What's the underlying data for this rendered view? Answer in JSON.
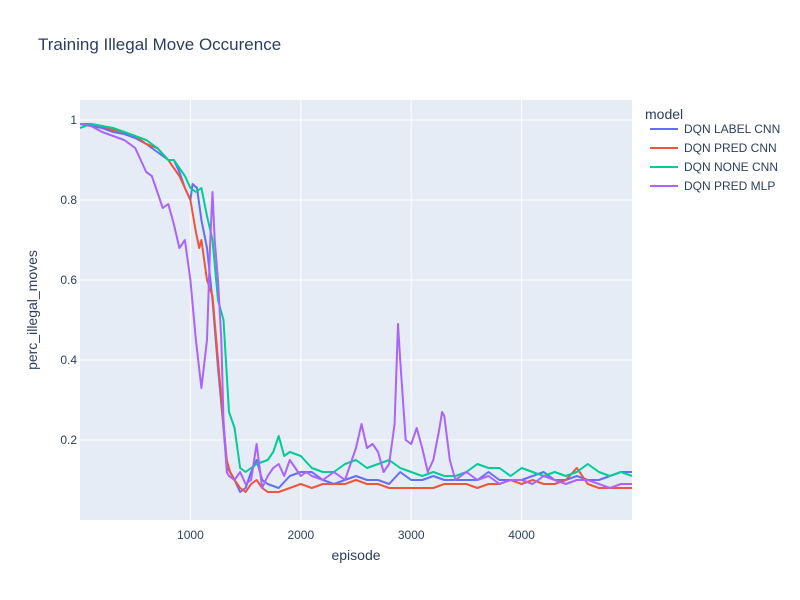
{
  "chart_data": {
    "type": "line",
    "title": "Training Illegal Move Occurence",
    "xlabel": "episode",
    "ylabel": "perc_illegal_moves",
    "xlim": [
      0,
      5000
    ],
    "ylim": [
      0,
      1.05
    ],
    "xticks": [
      1000,
      2000,
      3000,
      4000
    ],
    "yticks": [
      0.2,
      0.4,
      0.6,
      0.8,
      1
    ],
    "grid": true,
    "legend_title": "model",
    "legend_position": "right",
    "plot_bg": "#e5ecf6",
    "series": [
      {
        "name": "DQN LABEL CNN",
        "color": "#636efa",
        "points": [
          [
            0,
            0.99
          ],
          [
            100,
            0.985
          ],
          [
            200,
            0.98
          ],
          [
            300,
            0.97
          ],
          [
            400,
            0.965
          ],
          [
            500,
            0.955
          ],
          [
            600,
            0.94
          ],
          [
            700,
            0.92
          ],
          [
            800,
            0.9
          ],
          [
            850,
            0.9
          ],
          [
            900,
            0.87
          ],
          [
            950,
            0.83
          ],
          [
            1000,
            0.8
          ],
          [
            1020,
            0.84
          ],
          [
            1060,
            0.83
          ],
          [
            1100,
            0.75
          ],
          [
            1150,
            0.68
          ],
          [
            1200,
            0.55
          ],
          [
            1250,
            0.38
          ],
          [
            1300,
            0.23
          ],
          [
            1330,
            0.13
          ],
          [
            1360,
            0.12
          ],
          [
            1400,
            0.1
          ],
          [
            1450,
            0.07
          ],
          [
            1500,
            0.08
          ],
          [
            1550,
            0.12
          ],
          [
            1600,
            0.15
          ],
          [
            1650,
            0.1
          ],
          [
            1700,
            0.09
          ],
          [
            1800,
            0.08
          ],
          [
            1900,
            0.11
          ],
          [
            2000,
            0.12
          ],
          [
            2100,
            0.12
          ],
          [
            2200,
            0.1
          ],
          [
            2300,
            0.09
          ],
          [
            2400,
            0.1
          ],
          [
            2500,
            0.11
          ],
          [
            2600,
            0.1
          ],
          [
            2700,
            0.1
          ],
          [
            2800,
            0.09
          ],
          [
            2900,
            0.12
          ],
          [
            3000,
            0.1
          ],
          [
            3100,
            0.1
          ],
          [
            3200,
            0.11
          ],
          [
            3300,
            0.1
          ],
          [
            3400,
            0.1
          ],
          [
            3500,
            0.1
          ],
          [
            3600,
            0.1
          ],
          [
            3700,
            0.12
          ],
          [
            3800,
            0.1
          ],
          [
            3900,
            0.1
          ],
          [
            4000,
            0.1
          ],
          [
            4100,
            0.11
          ],
          [
            4200,
            0.12
          ],
          [
            4300,
            0.1
          ],
          [
            4400,
            0.1
          ],
          [
            4500,
            0.11
          ],
          [
            4600,
            0.1
          ],
          [
            4700,
            0.1
          ],
          [
            4800,
            0.11
          ],
          [
            4900,
            0.12
          ],
          [
            5000,
            0.12
          ]
        ]
      },
      {
        "name": "DQN PRED CNN",
        "color": "#ef553b",
        "points": [
          [
            0,
            0.99
          ],
          [
            100,
            0.99
          ],
          [
            200,
            0.985
          ],
          [
            300,
            0.975
          ],
          [
            400,
            0.97
          ],
          [
            500,
            0.96
          ],
          [
            600,
            0.94
          ],
          [
            700,
            0.93
          ],
          [
            800,
            0.9
          ],
          [
            850,
            0.88
          ],
          [
            900,
            0.86
          ],
          [
            950,
            0.83
          ],
          [
            1000,
            0.8
          ],
          [
            1050,
            0.72
          ],
          [
            1080,
            0.68
          ],
          [
            1100,
            0.7
          ],
          [
            1150,
            0.6
          ],
          [
            1200,
            0.56
          ],
          [
            1250,
            0.4
          ],
          [
            1300,
            0.24
          ],
          [
            1330,
            0.15
          ],
          [
            1360,
            0.12
          ],
          [
            1400,
            0.1
          ],
          [
            1450,
            0.08
          ],
          [
            1500,
            0.07
          ],
          [
            1550,
            0.09
          ],
          [
            1600,
            0.1
          ],
          [
            1650,
            0.08
          ],
          [
            1700,
            0.07
          ],
          [
            1800,
            0.07
          ],
          [
            1900,
            0.08
          ],
          [
            2000,
            0.09
          ],
          [
            2100,
            0.08
          ],
          [
            2200,
            0.09
          ],
          [
            2300,
            0.09
          ],
          [
            2400,
            0.09
          ],
          [
            2500,
            0.1
          ],
          [
            2600,
            0.09
          ],
          [
            2700,
            0.09
          ],
          [
            2800,
            0.08
          ],
          [
            2900,
            0.08
          ],
          [
            3000,
            0.08
          ],
          [
            3100,
            0.08
          ],
          [
            3200,
            0.08
          ],
          [
            3300,
            0.09
          ],
          [
            3400,
            0.09
          ],
          [
            3500,
            0.09
          ],
          [
            3600,
            0.08
          ],
          [
            3700,
            0.09
          ],
          [
            3800,
            0.09
          ],
          [
            3900,
            0.1
          ],
          [
            4000,
            0.09
          ],
          [
            4100,
            0.1
          ],
          [
            4200,
            0.09
          ],
          [
            4300,
            0.09
          ],
          [
            4400,
            0.1
          ],
          [
            4500,
            0.13
          ],
          [
            4600,
            0.09
          ],
          [
            4700,
            0.08
          ],
          [
            4800,
            0.08
          ],
          [
            4900,
            0.08
          ],
          [
            5000,
            0.08
          ]
        ]
      },
      {
        "name": "DQN NONE CNN",
        "color": "#00cc96",
        "points": [
          [
            0,
            0.98
          ],
          [
            100,
            0.99
          ],
          [
            200,
            0.985
          ],
          [
            300,
            0.98
          ],
          [
            400,
            0.97
          ],
          [
            500,
            0.96
          ],
          [
            600,
            0.95
          ],
          [
            700,
            0.93
          ],
          [
            800,
            0.9
          ],
          [
            850,
            0.9
          ],
          [
            900,
            0.88
          ],
          [
            950,
            0.86
          ],
          [
            1000,
            0.83
          ],
          [
            1050,
            0.82
          ],
          [
            1100,
            0.83
          ],
          [
            1150,
            0.76
          ],
          [
            1200,
            0.7
          ],
          [
            1250,
            0.55
          ],
          [
            1300,
            0.5
          ],
          [
            1350,
            0.27
          ],
          [
            1400,
            0.23
          ],
          [
            1450,
            0.13
          ],
          [
            1500,
            0.12
          ],
          [
            1550,
            0.13
          ],
          [
            1600,
            0.14
          ],
          [
            1700,
            0.15
          ],
          [
            1750,
            0.17
          ],
          [
            1800,
            0.21
          ],
          [
            1850,
            0.16
          ],
          [
            1900,
            0.17
          ],
          [
            2000,
            0.16
          ],
          [
            2100,
            0.13
          ],
          [
            2200,
            0.12
          ],
          [
            2300,
            0.12
          ],
          [
            2400,
            0.14
          ],
          [
            2500,
            0.15
          ],
          [
            2600,
            0.13
          ],
          [
            2700,
            0.14
          ],
          [
            2800,
            0.15
          ],
          [
            2900,
            0.13
          ],
          [
            3000,
            0.12
          ],
          [
            3100,
            0.11
          ],
          [
            3200,
            0.12
          ],
          [
            3300,
            0.11
          ],
          [
            3400,
            0.11
          ],
          [
            3500,
            0.12
          ],
          [
            3600,
            0.14
          ],
          [
            3700,
            0.13
          ],
          [
            3800,
            0.13
          ],
          [
            3900,
            0.11
          ],
          [
            4000,
            0.13
          ],
          [
            4100,
            0.12
          ],
          [
            4200,
            0.11
          ],
          [
            4300,
            0.12
          ],
          [
            4400,
            0.11
          ],
          [
            4500,
            0.12
          ],
          [
            4600,
            0.14
          ],
          [
            4700,
            0.12
          ],
          [
            4800,
            0.11
          ],
          [
            4900,
            0.12
          ],
          [
            5000,
            0.11
          ]
        ]
      },
      {
        "name": "DQN PRED MLP",
        "color": "#ab63fa",
        "points": [
          [
            0,
            0.99
          ],
          [
            100,
            0.985
          ],
          [
            200,
            0.97
          ],
          [
            300,
            0.96
          ],
          [
            400,
            0.95
          ],
          [
            500,
            0.93
          ],
          [
            550,
            0.9
          ],
          [
            600,
            0.87
          ],
          [
            650,
            0.86
          ],
          [
            700,
            0.82
          ],
          [
            750,
            0.78
          ],
          [
            800,
            0.79
          ],
          [
            850,
            0.74
          ],
          [
            900,
            0.68
          ],
          [
            950,
            0.7
          ],
          [
            1000,
            0.6
          ],
          [
            1050,
            0.45
          ],
          [
            1100,
            0.33
          ],
          [
            1150,
            0.45
          ],
          [
            1180,
            0.7
          ],
          [
            1200,
            0.82
          ],
          [
            1220,
            0.7
          ],
          [
            1250,
            0.6
          ],
          [
            1280,
            0.45
          ],
          [
            1300,
            0.25
          ],
          [
            1330,
            0.12
          ],
          [
            1350,
            0.11
          ],
          [
            1400,
            0.1
          ],
          [
            1450,
            0.12
          ],
          [
            1500,
            0.09
          ],
          [
            1550,
            0.1
          ],
          [
            1600,
            0.19
          ],
          [
            1650,
            0.08
          ],
          [
            1700,
            0.11
          ],
          [
            1750,
            0.13
          ],
          [
            1800,
            0.14
          ],
          [
            1850,
            0.11
          ],
          [
            1900,
            0.15
          ],
          [
            2000,
            0.11
          ],
          [
            2050,
            0.12
          ],
          [
            2100,
            0.11
          ],
          [
            2200,
            0.1
          ],
          [
            2300,
            0.12
          ],
          [
            2400,
            0.1
          ],
          [
            2450,
            0.14
          ],
          [
            2500,
            0.18
          ],
          [
            2550,
            0.24
          ],
          [
            2600,
            0.18
          ],
          [
            2650,
            0.19
          ],
          [
            2700,
            0.17
          ],
          [
            2750,
            0.12
          ],
          [
            2800,
            0.14
          ],
          [
            2850,
            0.24
          ],
          [
            2880,
            0.49
          ],
          [
            2900,
            0.4
          ],
          [
            2950,
            0.2
          ],
          [
            3000,
            0.19
          ],
          [
            3050,
            0.23
          ],
          [
            3100,
            0.18
          ],
          [
            3150,
            0.12
          ],
          [
            3200,
            0.15
          ],
          [
            3250,
            0.22
          ],
          [
            3280,
            0.27
          ],
          [
            3300,
            0.26
          ],
          [
            3350,
            0.15
          ],
          [
            3400,
            0.1
          ],
          [
            3500,
            0.12
          ],
          [
            3600,
            0.1
          ],
          [
            3700,
            0.11
          ],
          [
            3800,
            0.09
          ],
          [
            3900,
            0.1
          ],
          [
            4000,
            0.1
          ],
          [
            4100,
            0.09
          ],
          [
            4200,
            0.11
          ],
          [
            4300,
            0.1
          ],
          [
            4400,
            0.09
          ],
          [
            4500,
            0.1
          ],
          [
            4600,
            0.1
          ],
          [
            4700,
            0.09
          ],
          [
            4800,
            0.08
          ],
          [
            4900,
            0.09
          ],
          [
            5000,
            0.09
          ]
        ]
      }
    ]
  }
}
